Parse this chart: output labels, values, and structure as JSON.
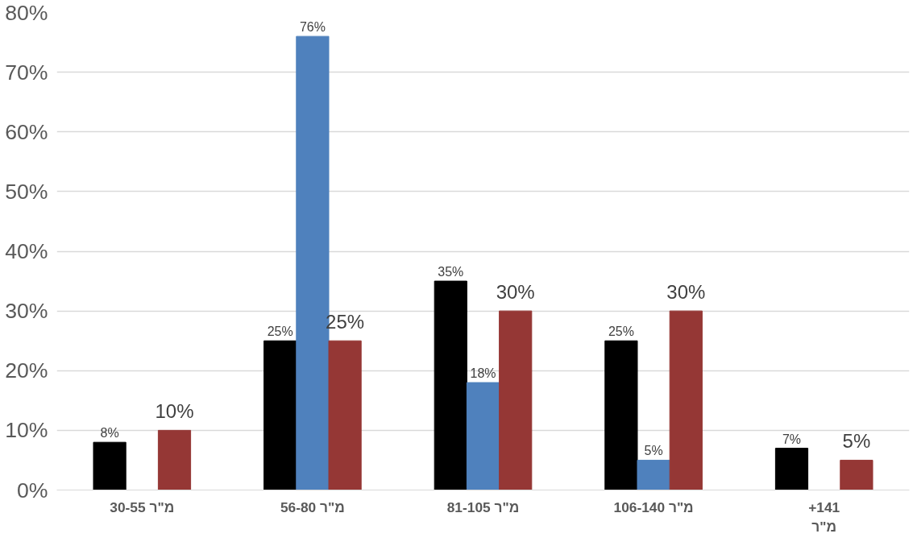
{
  "chart_data": {
    "type": "bar",
    "categories": [
      "30-55 מ\"ר",
      "56-80 מ\"ר",
      "81-105 מ\"ר",
      "106-140 מ\"ר",
      "+141\nמ\"ר"
    ],
    "series": [
      {
        "color": "#000000",
        "values": [
          8,
          25,
          35,
          25,
          7
        ],
        "value_labels": [
          "8%",
          "25%",
          "35%",
          "25%",
          "7%"
        ]
      },
      {
        "color": "#4f81bd",
        "values": [
          null,
          76,
          18,
          5,
          null
        ],
        "value_labels": [
          null,
          "76%",
          "18%",
          "5%",
          null
        ]
      },
      {
        "color": "#953735",
        "values": [
          10,
          25,
          30,
          30,
          5
        ],
        "value_labels": [
          "10%",
          "25%",
          "30%",
          "30%",
          "5%"
        ]
      }
    ],
    "ylim": [
      0,
      80
    ],
    "yticks": [
      {
        "value": 0,
        "label": "0%"
      },
      {
        "value": 10,
        "label": "10%"
      },
      {
        "value": 20,
        "label": "20%"
      },
      {
        "value": 30,
        "label": "30%"
      },
      {
        "value": 40,
        "label": "40%"
      },
      {
        "value": 50,
        "label": "50%"
      },
      {
        "value": 60,
        "label": "60%"
      },
      {
        "value": 70,
        "label": "70%"
      },
      {
        "value": 80,
        "label": "80%"
      }
    ],
    "grid": "y"
  }
}
